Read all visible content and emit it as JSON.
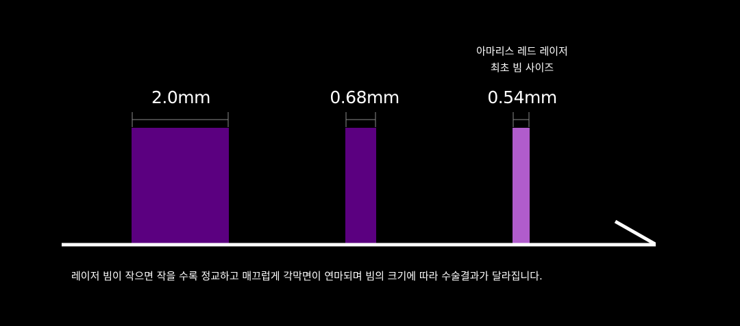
{
  "colors": {
    "background": "#000000",
    "baseline": "#ffffff",
    "dimension_line": "#8a8a8a",
    "beam_dark": "#5b0080",
    "beam_light": "#b05ccc",
    "text": "#ffffff"
  },
  "beams": [
    {
      "size_mm": 2.0,
      "label": "2.0mm",
      "color": "#5b0080"
    },
    {
      "size_mm": 0.68,
      "label": "0.68mm",
      "color": "#5b0080"
    },
    {
      "size_mm": 0.54,
      "label": "0.54mm",
      "color": "#b05ccc"
    }
  ],
  "highlight_note": {
    "line1": "아마리스 레드 레이저",
    "line2": "최초 빔 사이즈"
  },
  "caption": "레이저 빔이 작으면 작을 수록 정교하고 매끄럽게 각막면이 연마되며 빔의 크기에 따라 수술결과가 달라집니다."
}
